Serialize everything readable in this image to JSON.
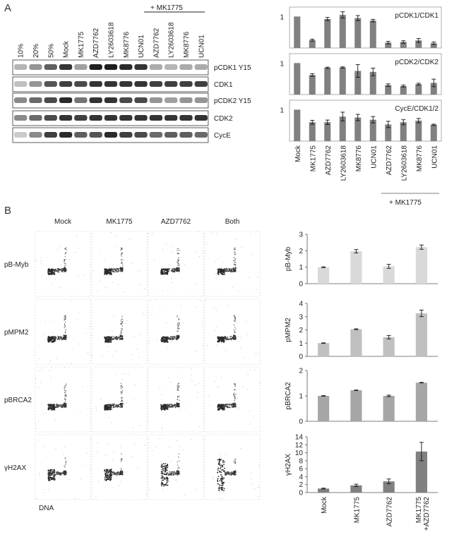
{
  "panel_labels": {
    "a": "A",
    "b": "B"
  },
  "panel_a": {
    "treatment_header": "+ MK1775",
    "lane_labels": [
      "10%",
      "20%",
      "50%",
      "Mock",
      "MK1775",
      "AZD7762",
      "LY2603618",
      "MK8776",
      "UCN01",
      "AZD7762",
      "LY2603618",
      "MK8776",
      "UCN01"
    ],
    "blot_labels": [
      "pCDK1 Y15",
      "CDK1",
      "pCDK2 Y15",
      "CDK2",
      "CycE"
    ],
    "band_intensity": [
      [
        0.25,
        0.4,
        0.65,
        0.85,
        0.35,
        0.95,
        0.95,
        0.9,
        0.85,
        0.3,
        0.25,
        0.3,
        0.3
      ],
      [
        0.2,
        0.4,
        0.7,
        0.8,
        0.75,
        0.85,
        0.85,
        0.85,
        0.85,
        0.8,
        0.8,
        0.8,
        0.8
      ],
      [
        0.45,
        0.6,
        0.75,
        0.9,
        0.55,
        0.85,
        0.85,
        0.75,
        0.75,
        0.4,
        0.35,
        0.4,
        0.4
      ],
      [
        0.45,
        0.6,
        0.75,
        0.85,
        0.8,
        0.85,
        0.85,
        0.85,
        0.85,
        0.85,
        0.85,
        0.85,
        0.85
      ],
      [
        0.15,
        0.45,
        0.8,
        0.9,
        0.65,
        0.7,
        0.9,
        0.8,
        0.75,
        0.6,
        0.65,
        0.65,
        0.6
      ]
    ]
  },
  "chart_data": [
    {
      "type": "bar",
      "title": "pCDK1/CDK1",
      "categories": [
        "Mock",
        "MK1775",
        "AZD7762",
        "LY2603618",
        "MK8776",
        "UCN01",
        "AZD7762",
        "LY2603618",
        "MK8776",
        "UCN01"
      ],
      "values": [
        1.0,
        0.25,
        0.92,
        1.05,
        0.95,
        0.87,
        0.17,
        0.19,
        0.24,
        0.15
      ],
      "errors": [
        0,
        0.03,
        0.05,
        0.1,
        0.08,
        0.04,
        0.04,
        0.04,
        0.06,
        0.04
      ],
      "ytick": "1",
      "ylim": [
        0,
        1.3
      ],
      "color": "#808080"
    },
    {
      "type": "bar",
      "title": "pCDK2/CDK2",
      "categories": [
        "Mock",
        "MK1775",
        "AZD7762",
        "LY2603618",
        "MK8776",
        "UCN01",
        "AZD7762",
        "LY2603618",
        "MK8776",
        "UCN01"
      ],
      "values": [
        1.0,
        0.62,
        0.85,
        0.86,
        0.75,
        0.72,
        0.3,
        0.27,
        0.33,
        0.37
      ],
      "errors": [
        0,
        0.04,
        0.02,
        0.02,
        0.2,
        0.12,
        0.04,
        0.03,
        0.03,
        0.12
      ],
      "ytick": "1",
      "ylim": [
        0,
        1.3
      ],
      "color": "#808080"
    },
    {
      "type": "bar",
      "title": "CycE/CDK1/2",
      "categories": [
        "Mock",
        "MK1775",
        "AZD7762",
        "LY2603618",
        "MK8776",
        "UCN01",
        "AZD7762",
        "LY2603618",
        "MK8776",
        "UCN01"
      ],
      "values": [
        1.0,
        0.6,
        0.6,
        0.78,
        0.75,
        0.68,
        0.53,
        0.6,
        0.65,
        0.52
      ],
      "errors": [
        0,
        0.06,
        0.07,
        0.14,
        0.1,
        0.1,
        0.1,
        0.08,
        0.07,
        0.02
      ],
      "ytick": "1",
      "ylim": [
        0,
        1.3
      ],
      "color": "#808080"
    },
    {
      "type": "bar",
      "ylabel": "pB-Myb",
      "categories": [
        "Mock",
        "MK1775",
        "AZD7762",
        "MK1775 +AZD7762"
      ],
      "values": [
        1.0,
        1.97,
        1.05,
        2.22
      ],
      "errors": [
        0.02,
        0.1,
        0.12,
        0.13
      ],
      "yticks": [
        0,
        1,
        2,
        3
      ],
      "ylim": [
        0,
        3
      ],
      "color": "#d9d9d9"
    },
    {
      "type": "bar",
      "ylabel": "pMPM2",
      "categories": [
        "Mock",
        "MK1775",
        "AZD7762",
        "MK1775 +AZD7762"
      ],
      "values": [
        1.0,
        2.05,
        1.45,
        3.25
      ],
      "errors": [
        0.02,
        0.03,
        0.13,
        0.25
      ],
      "yticks": [
        0,
        1,
        2,
        3,
        4
      ],
      "ylim": [
        0,
        4
      ],
      "color": "#c0c0c0"
    },
    {
      "type": "bar",
      "ylabel": "pBRCA2",
      "categories": [
        "Mock",
        "MK1775",
        "AZD7762",
        "MK1775 +AZD7762"
      ],
      "values": [
        1.0,
        1.22,
        1.0,
        1.52
      ],
      "errors": [
        0.01,
        0.01,
        0.03,
        0.01
      ],
      "yticks": [
        0,
        1,
        2
      ],
      "ylim": [
        0,
        2
      ],
      "color": "#a6a6a6"
    },
    {
      "type": "bar",
      "ylabel": "γH2AX",
      "categories": [
        "Mock",
        "MK1775",
        "AZD7762",
        "MK1775 +AZD7762"
      ],
      "values": [
        1.0,
        1.8,
        2.8,
        10.3
      ],
      "errors": [
        0.1,
        0.3,
        0.6,
        2.3
      ],
      "yticks": [
        0,
        2,
        4,
        6,
        8,
        10,
        12,
        14
      ],
      "ylim": [
        0,
        14
      ],
      "color": "#808080"
    }
  ],
  "panel_a_bars": {
    "category_labels": [
      "Mock",
      "MK1775",
      "AZD7762",
      "LY2603618",
      "MK8776",
      "UCN01",
      "AZD7762",
      "LY2603618",
      "MK8776",
      "UCN01"
    ],
    "group_label": "+ MK1775"
  },
  "panel_b": {
    "conditions": [
      "Mock",
      "MK1775",
      "AZD7762",
      "Both"
    ],
    "markers": [
      "pB-Myb",
      "pMPM2",
      "pBRCA2",
      "γH2AX"
    ],
    "x_axis_label": "DNA",
    "bar_categories": [
      "Mock",
      "MK1775",
      "AZD7762",
      "MK1775",
      "+AZD7762"
    ]
  }
}
